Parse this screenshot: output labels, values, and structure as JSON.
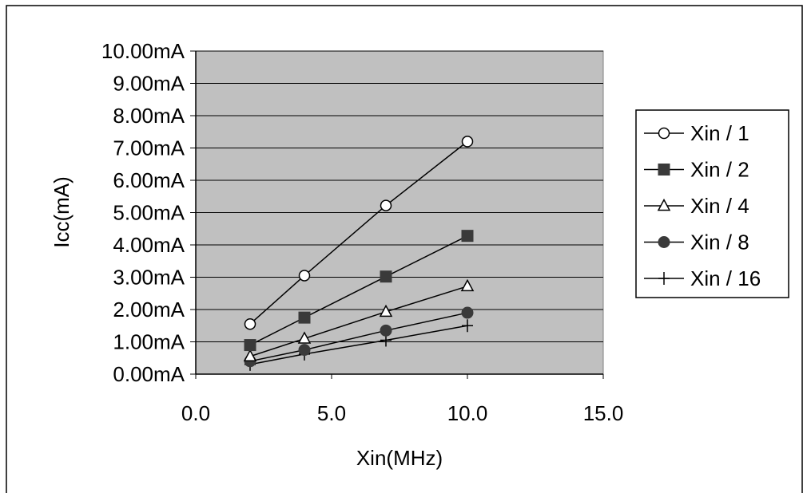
{
  "chart_data": {
    "type": "line",
    "title": "",
    "xlabel": "Xin(MHz)",
    "ylabel": "Icc(mA)",
    "xlim": [
      0,
      15
    ],
    "ylim": [
      0,
      10
    ],
    "x_ticks": [
      "0.0",
      "5.0",
      "10.0",
      "15.0"
    ],
    "y_ticks": [
      "0.00mA",
      "1.00mA",
      "2.00mA",
      "3.00mA",
      "4.00mA",
      "5.00mA",
      "6.00mA",
      "7.00mA",
      "8.00mA",
      "9.00mA",
      "10.00mA"
    ],
    "grid": "horizontal",
    "legend_position": "right",
    "plot_background": "#c0c0c0",
    "line_color": "#000000",
    "series": [
      {
        "name": "Xin / 1",
        "marker": "open-circle",
        "x": [
          2,
          4,
          7,
          10
        ],
        "y": [
          1.55,
          3.05,
          5.22,
          7.2
        ]
      },
      {
        "name": "Xin / 2",
        "marker": "filled-square",
        "x": [
          2,
          4,
          7,
          10
        ],
        "y": [
          0.9,
          1.75,
          3.02,
          4.28
        ]
      },
      {
        "name": "Xin / 4",
        "marker": "open-triangle",
        "x": [
          2,
          4,
          7,
          10
        ],
        "y": [
          0.55,
          1.1,
          1.93,
          2.72
        ]
      },
      {
        "name": "Xin / 8",
        "marker": "filled-circle",
        "x": [
          2,
          4,
          7,
          10
        ],
        "y": [
          0.4,
          0.75,
          1.35,
          1.9
        ]
      },
      {
        "name": "Xin / 16",
        "marker": "plus",
        "x": [
          2,
          4,
          7,
          10
        ],
        "y": [
          0.3,
          0.62,
          1.05,
          1.5
        ]
      }
    ]
  }
}
